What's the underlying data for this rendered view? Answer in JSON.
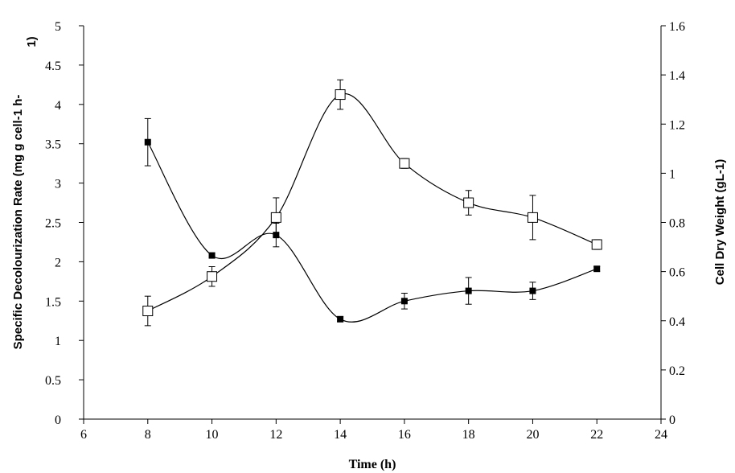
{
  "chart_data": {
    "type": "line",
    "title": "",
    "xlabel": "Time  (h)",
    "ylabel_left": "Specific Decolourization  Rate (mg g cell-1 h-1)",
    "ylabel_left_lines": [
      "Specific Decolourization  Rate (mg g cell-1 h-",
      "1)"
    ],
    "ylabel_right": "Cell Dry Weight (gL-1)",
    "xlim": [
      6,
      24
    ],
    "ylim_left": [
      0,
      5
    ],
    "ylim_right": [
      0,
      1.6
    ],
    "x_ticks": [
      6,
      8,
      10,
      12,
      14,
      16,
      18,
      20,
      22,
      24
    ],
    "y_left_ticks": [
      "0",
      "0.5",
      "1",
      "1.5",
      "2",
      "2.5",
      "3",
      "3.5",
      "4",
      "4.5",
      "5"
    ],
    "y_right_ticks": [
      "0",
      "0.2",
      "0.4",
      "0.6",
      "0.8",
      "1",
      "1.2",
      "1.4",
      "1.6"
    ],
    "grid": false,
    "legend": "none",
    "series": [
      {
        "marker": "filled-square",
        "axis": "left",
        "color": "#000000",
        "x": [
          8,
          10,
          12,
          14,
          16,
          18,
          20,
          22
        ],
        "y": [
          3.52,
          2.08,
          2.34,
          1.27,
          1.5,
          1.63,
          1.63,
          1.91
        ],
        "err": [
          0.3,
          0.03,
          0.15,
          0.03,
          0.1,
          0.17,
          0.11,
          0.03
        ]
      },
      {
        "marker": "open-square",
        "axis": "right",
        "color": "#000000",
        "x": [
          8,
          10,
          12,
          14,
          16,
          18,
          20,
          22
        ],
        "y": [
          0.44,
          0.58,
          0.82,
          1.32,
          1.04,
          0.88,
          0.82,
          0.71
        ],
        "err": [
          0.06,
          0.04,
          0.08,
          0.06,
          0.02,
          0.05,
          0.09,
          0.02
        ]
      }
    ]
  }
}
